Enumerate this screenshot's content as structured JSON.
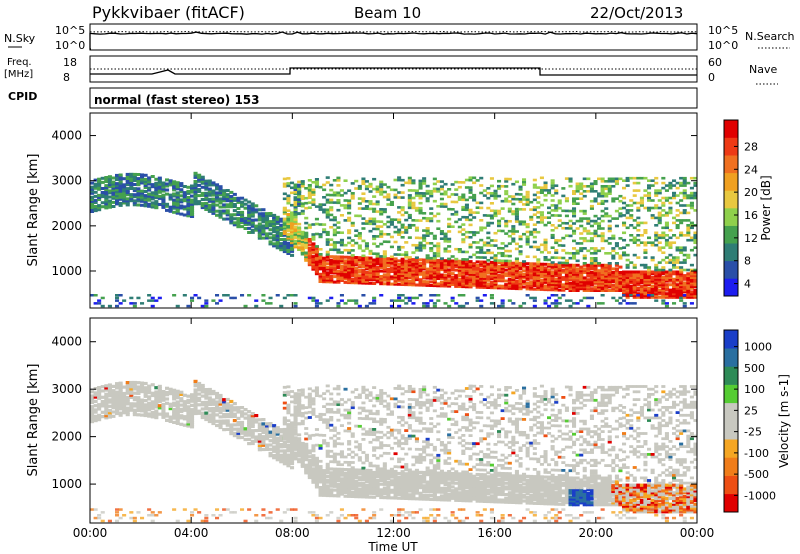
{
  "header": {
    "title": "Pykkvibaer (fitACF)",
    "beam": "Beam 10",
    "date": "22/Oct/2013"
  },
  "status_panels": {
    "nsky_label": "N.Sky",
    "nsky_ticks": [
      "10^5",
      "10^0"
    ],
    "nsearch_label": "N.Search",
    "nsearch_ticks": [
      "10^5",
      "10^0"
    ],
    "freq_label": "Freq.",
    "freq_unit": "[MHz]",
    "freq_ticks": [
      "18",
      "8"
    ],
    "nave_label": "Nave",
    "nave_ticks": [
      "60",
      "0"
    ],
    "cpid_label": "CPID",
    "cpid_value": "normal (fast stereo) 153"
  },
  "chart_data": [
    {
      "type": "heatmap",
      "name": "Power panel",
      "ylabel": "Slant Range [km]",
      "ylim": [
        180,
        4500
      ],
      "yticks": [
        "1000",
        "2000",
        "3000",
        "4000"
      ],
      "colorbar": {
        "label": "Power [dB]",
        "ticks": [
          "4",
          "8",
          "12",
          "16",
          "20",
          "24",
          "28"
        ],
        "colors": [
          "#1d1df0",
          "#2a4fa8",
          "#2f7d75",
          "#45a14e",
          "#8fd04c",
          "#e8c840",
          "#f0a020",
          "#f07020",
          "#ee3a15",
          "#e00000"
        ]
      }
    },
    {
      "type": "heatmap",
      "name": "Velocity panel",
      "xlabel": "Time UT",
      "ylabel": "Slant Range [km]",
      "ylim": [
        180,
        4500
      ],
      "yticks": [
        "1000",
        "2000",
        "3000",
        "4000"
      ],
      "xticks": [
        "00:00",
        "04:00",
        "08:00",
        "12:00",
        "16:00",
        "20:00",
        "00:00"
      ],
      "colorbar": {
        "label": "Velocity [m s-1]",
        "ticks": [
          "1000",
          "500",
          "100",
          "25",
          "-25",
          "-100",
          "-500",
          "-1000"
        ],
        "colors": [
          "#1a3ec8",
          "#2a6fa0",
          "#2e8b57",
          "#55cc33",
          "#c8c8c0",
          "#c8c8c0",
          "#f5a623",
          "#f07d1a",
          "#ee4f14",
          "#e00000"
        ]
      }
    }
  ]
}
